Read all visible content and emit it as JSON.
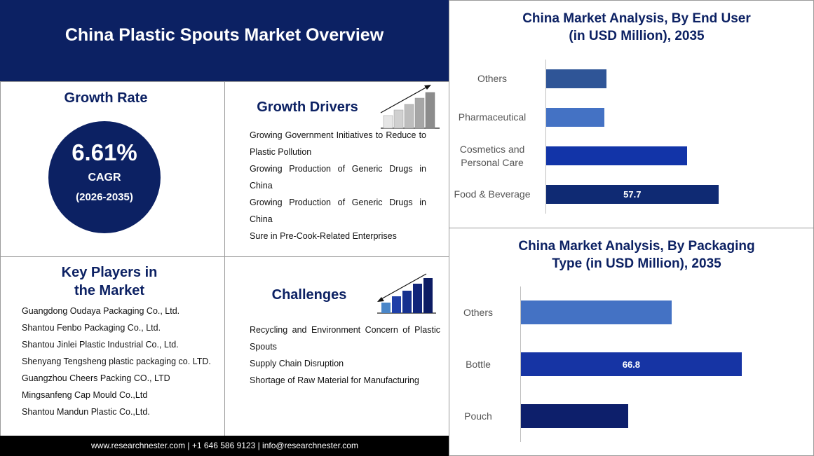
{
  "header": {
    "title": "China Plastic Spouts Market Overview"
  },
  "growth_rate": {
    "title": "Growth Rate",
    "value": "6.61%",
    "label": "CAGR",
    "period": "(2026-2035)"
  },
  "growth_drivers": {
    "title": "Growth Drivers",
    "items": [
      "Growing Government Initiatives to Reduce to Plastic Pollution",
      "Growing Production of Generic Drugs in China",
      "Growing Production of Generic Drugs in China",
      "Sure in Pre-Cook-Related Enterprises"
    ]
  },
  "key_players": {
    "title": "Key Players in the Market",
    "items": [
      "Guangdong Oudaya Packaging Co., Ltd.",
      "Shantou Fenbo Packaging Co., Ltd.",
      "Shantou Jinlei Plastic Industrial Co., Ltd.",
      "Shenyang Tengsheng plastic packaging co. LTD.",
      "Guangzhou Cheers Packing CO., LTD",
      "Mingsanfeng Cap Mould Co.,Ltd",
      "Shantou Mandun Plastic Co.,Ltd."
    ]
  },
  "challenges": {
    "title": "Challenges",
    "items": [
      "Recycling and Environment Concern of Plastic Spouts",
      "Supply Chain Disruption",
      "Shortage of Raw Material for Manufacturing"
    ]
  },
  "footer": {
    "text": "www.researchnester.com | +1 646 586 9123 | info@researchnester.com"
  },
  "chart_data": [
    {
      "type": "bar",
      "orientation": "horizontal",
      "title": "China Market Analysis, By End User (in USD Million), 2035",
      "categories": [
        "Others",
        "Pharmaceutical",
        "Cosmetics and Personal Care",
        "Food & Beverage"
      ],
      "values": [
        20.2,
        19.5,
        47.2,
        57.7
      ],
      "value_labels": [
        null,
        null,
        null,
        "57.7"
      ],
      "colors": [
        "#2f5597",
        "#4472c4",
        "#1234a8",
        "#0f2a73"
      ],
      "xlim": [
        0,
        70
      ]
    },
    {
      "type": "bar",
      "orientation": "horizontal",
      "title": "China Market Analysis, By Packaging Type (in USD Million), 2035",
      "categories": [
        "Others",
        "Bottle",
        "Pouch"
      ],
      "values": [
        45.6,
        66.8,
        32.4
      ],
      "value_labels": [
        null,
        "66.8",
        null
      ],
      "colors": [
        "#4472c4",
        "#1634a4",
        "#0d1f6b"
      ],
      "xlim": [
        0,
        80
      ]
    }
  ]
}
